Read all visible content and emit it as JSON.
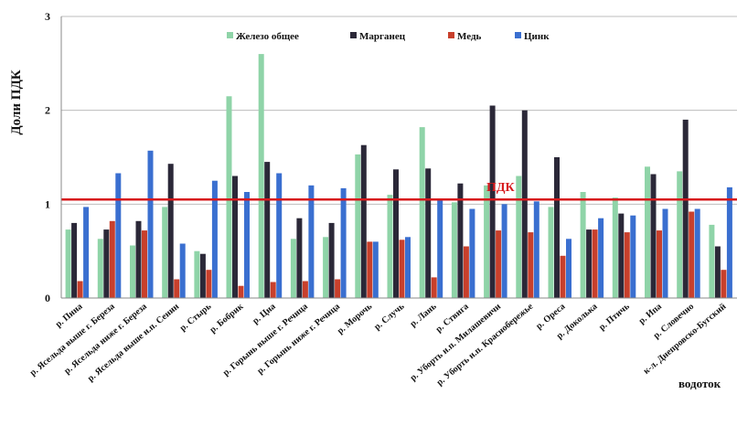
{
  "chart_data": {
    "type": "bar",
    "ylabel": "Доли ПДК",
    "xlabel": "водоток",
    "ylim": [
      0,
      3
    ],
    "yticks": [
      "0",
      "1",
      "2",
      "3"
    ],
    "legend_position": "top",
    "grid": true,
    "categories": [
      "р. Пина",
      "р. Ясельда выше г. Береза",
      "р. Ясельда ниже г. Береза",
      "р. Ясельда выше н.п. Сенин",
      "р. Стырь",
      "р. Бобрик",
      "р. Цна",
      "р. Горынь выше г. Речица",
      "р. Горынь ниже г. Речица",
      "р. Морочь",
      "р. Случь",
      "р. Лань",
      "р. Ствига",
      "р. Уборть н.п. Милашевичи",
      "р. Уборть н.п. Краснобережье",
      "р. Ореса",
      "р. Доколька",
      "р. Птичь",
      "р. Ипа",
      "р. Словечно",
      "к-л. Днепровско-Бугский"
    ],
    "series": [
      {
        "name": "Железо общее",
        "color": "#8fd4a8",
        "values": [
          0.73,
          0.63,
          0.56,
          0.97,
          0.5,
          2.15,
          2.6,
          0.63,
          0.65,
          1.53,
          1.1,
          1.82,
          1.02,
          1.2,
          1.3,
          0.97,
          1.13,
          1.07,
          1.4,
          1.35,
          0.78
        ]
      },
      {
        "name": "Марганец",
        "color": "#2b2838",
        "values": [
          0.8,
          0.73,
          0.82,
          1.43,
          0.47,
          1.3,
          1.45,
          0.85,
          0.8,
          1.63,
          1.37,
          1.38,
          1.22,
          2.05,
          2.0,
          1.5,
          0.73,
          0.9,
          1.32,
          1.9,
          0.55
        ]
      },
      {
        "name": "Медь",
        "color": "#c8402c",
        "values": [
          0.18,
          0.82,
          0.72,
          0.2,
          0.3,
          0.13,
          0.17,
          0.18,
          0.2,
          0.6,
          0.62,
          0.22,
          0.55,
          0.72,
          0.7,
          0.45,
          0.73,
          0.7,
          0.72,
          0.92,
          0.3
        ]
      },
      {
        "name": "Цинк",
        "color": "#3a6fd0",
        "values": [
          0.97,
          1.33,
          1.57,
          0.58,
          1.25,
          1.13,
          1.33,
          1.2,
          1.17,
          0.6,
          0.65,
          1.05,
          0.95,
          1.0,
          1.03,
          0.63,
          0.85,
          0.88,
          0.95,
          0.95,
          1.18
        ]
      }
    ],
    "reference_line": {
      "label": "ПДК",
      "value": 1.05,
      "color": "#d7191c"
    }
  }
}
